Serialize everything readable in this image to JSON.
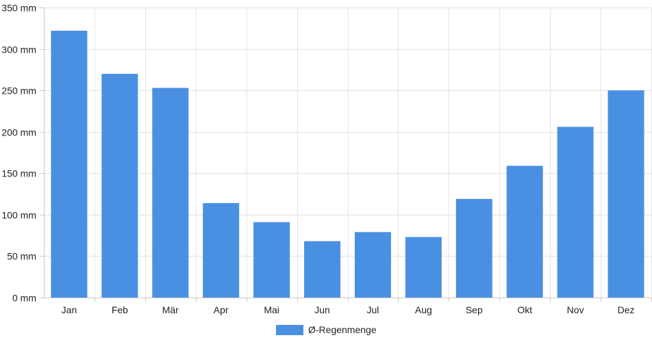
{
  "chart_data": {
    "type": "bar",
    "categories": [
      "Jan",
      "Feb",
      "Mär",
      "Apr",
      "Mai",
      "Jun",
      "Jul",
      "Aug",
      "Sep",
      "Okt",
      "Nov",
      "Dez"
    ],
    "series": [
      {
        "name": "Ø-Regenmenge",
        "values": [
          322,
          270,
          253,
          114,
          91,
          68,
          79,
          73,
          119,
          159,
          206,
          250
        ],
        "color": "#4a90e2"
      }
    ],
    "yunit": "mm",
    "ylim": [
      0,
      350
    ],
    "yticks": [
      "0 mm",
      "50 mm",
      "100 mm",
      "150 mm",
      "200 mm",
      "250 mm",
      "300 mm",
      "350 mm"
    ],
    "grid": true,
    "legend_position": "bottom"
  }
}
